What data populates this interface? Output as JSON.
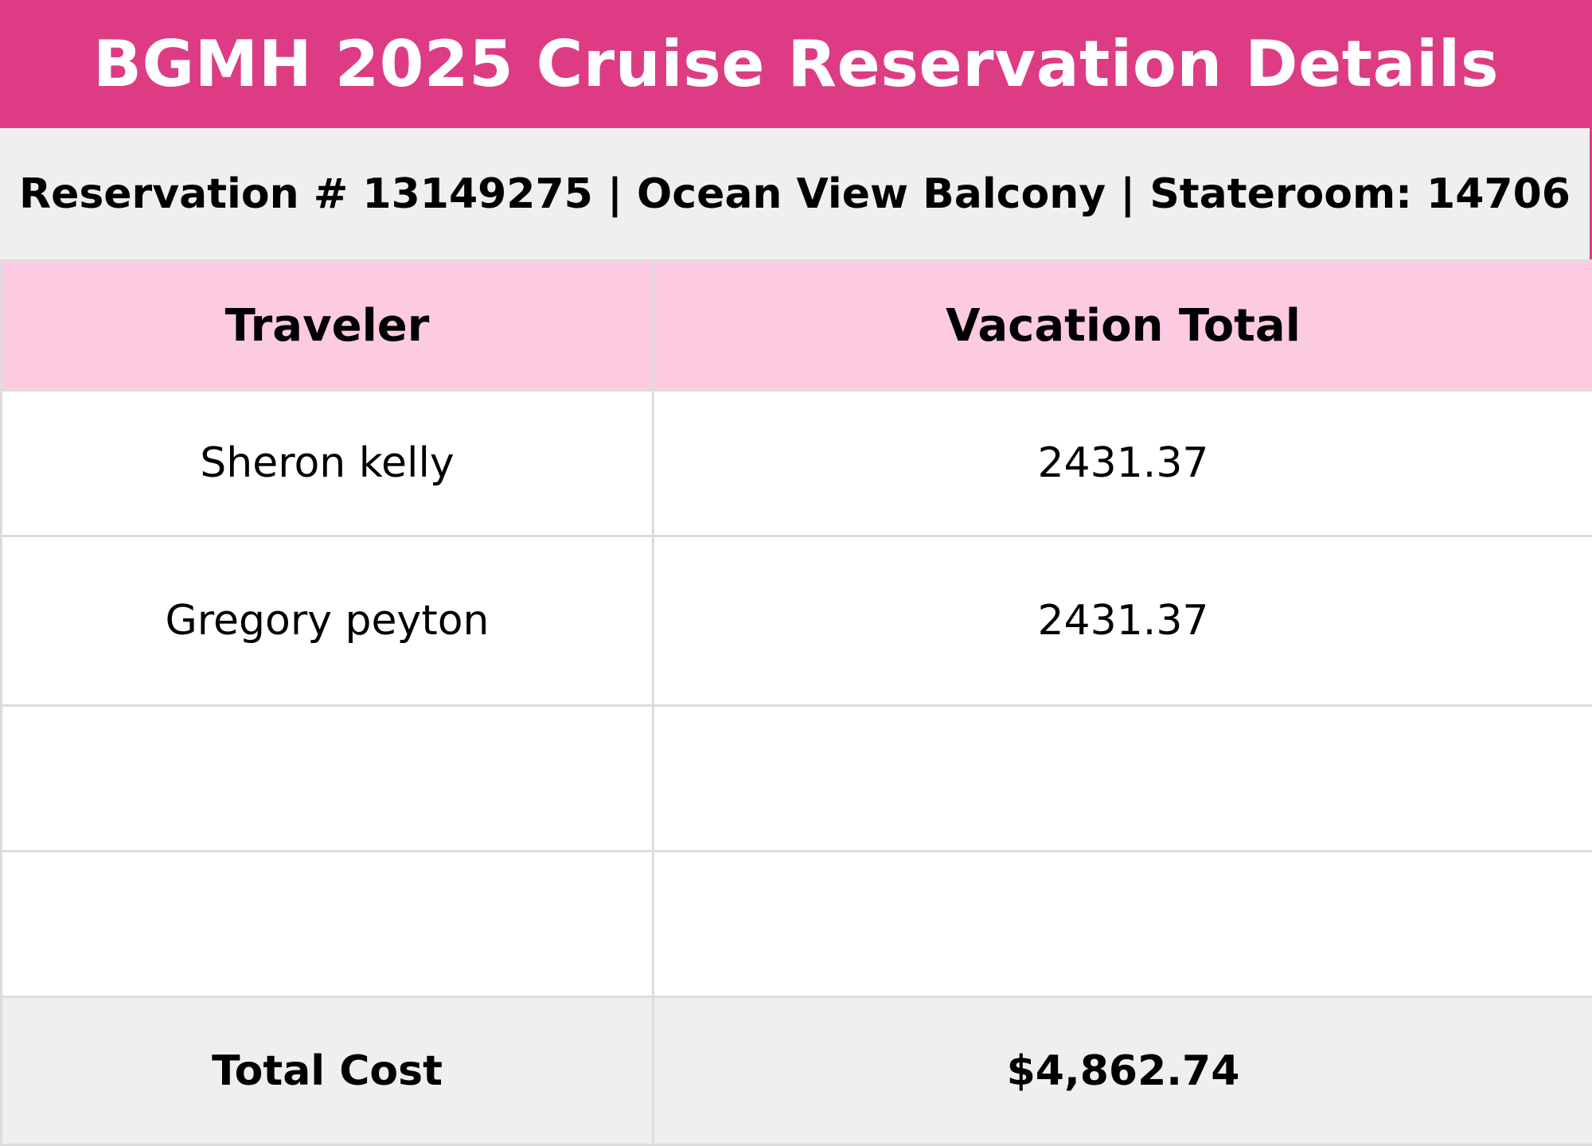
{
  "header": {
    "title": "BGMH 2025 Cruise Reservation Details"
  },
  "summary": {
    "line": "Reservation # 13149275 | Ocean View Balcony | Stateroom: 14706"
  },
  "table": {
    "columns": [
      "Traveler",
      "Vacation Total"
    ],
    "rows": [
      {
        "traveler": "Sheron kelly",
        "total": "2431.37"
      },
      {
        "traveler": "Gregory peyton",
        "total": "2431.37"
      },
      {
        "traveler": "",
        "total": ""
      },
      {
        "traveler": "",
        "total": ""
      }
    ],
    "footer": {
      "label": "Total Cost",
      "value": "$4,862.74"
    }
  },
  "colors": {
    "title_bar": "#dd3c84",
    "header_row": "#fdcbe1",
    "subtitle_bar": "#f0efed"
  }
}
